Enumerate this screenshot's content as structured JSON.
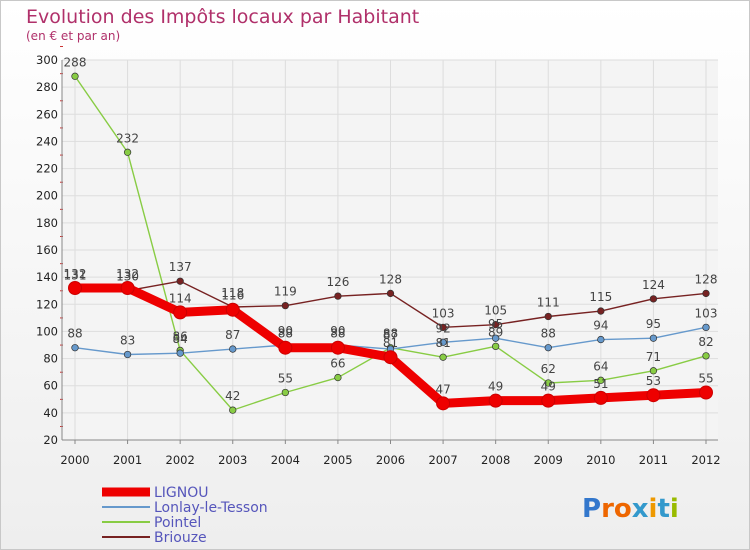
{
  "chart_data": {
    "type": "line",
    "title": "Evolution des Impôts locaux par Habitant",
    "subtitle": "(en € et par an)",
    "xlabel": "",
    "ylabel": "",
    "ylim": [
      20,
      300
    ],
    "yticks": [
      20,
      40,
      60,
      80,
      100,
      120,
      140,
      160,
      180,
      200,
      220,
      240,
      260,
      280,
      300
    ],
    "grid": true,
    "legend_position": "bottom-left",
    "categories": [
      "2000",
      "2001",
      "2002",
      "2003",
      "2004",
      "2005",
      "2006",
      "2007",
      "2008",
      "2009",
      "2010",
      "2011",
      "2012"
    ],
    "series": [
      {
        "name": "Pointel",
        "color": "#88cc44",
        "values": [
          288,
          232,
          86,
          42,
          55,
          66,
          88,
          81,
          89,
          62,
          64,
          71,
          82
        ]
      },
      {
        "name": "Lonlay-le-Tesson",
        "color": "#6699cc",
        "values": [
          88,
          83,
          84,
          87,
          90,
          90,
          87,
          92,
          95,
          88,
          94,
          95,
          103
        ]
      },
      {
        "name": "Briouze",
        "color": "#772222",
        "values": [
          131,
          130,
          137,
          118,
          119,
          126,
          128,
          103,
          105,
          111,
          115,
          124,
          128
        ]
      },
      {
        "name": "LIGNOU",
        "color": "#ee0000",
        "values": [
          132,
          132,
          114,
          116,
          88,
          88,
          81,
          47,
          49,
          49,
          51,
          53,
          55
        ]
      }
    ]
  },
  "legend_order": [
    "LIGNOU",
    "Lonlay-le-Tesson",
    "Pointel",
    "Briouze"
  ],
  "legend_label_colors": {
    "LIGNOU": "#5555bb",
    "Lonlay-le-Tesson": "#5555bb",
    "Pointel": "#5555bb",
    "Briouze": "#5555bb"
  },
  "brand": {
    "letters": [
      "P",
      "r",
      "o",
      "x",
      "i",
      "t",
      "i"
    ],
    "colors": [
      "#3377cc",
      "#ee6600",
      "#ee6600",
      "#3399cc",
      "#ee9900",
      "#3399cc",
      "#99bb00"
    ]
  }
}
